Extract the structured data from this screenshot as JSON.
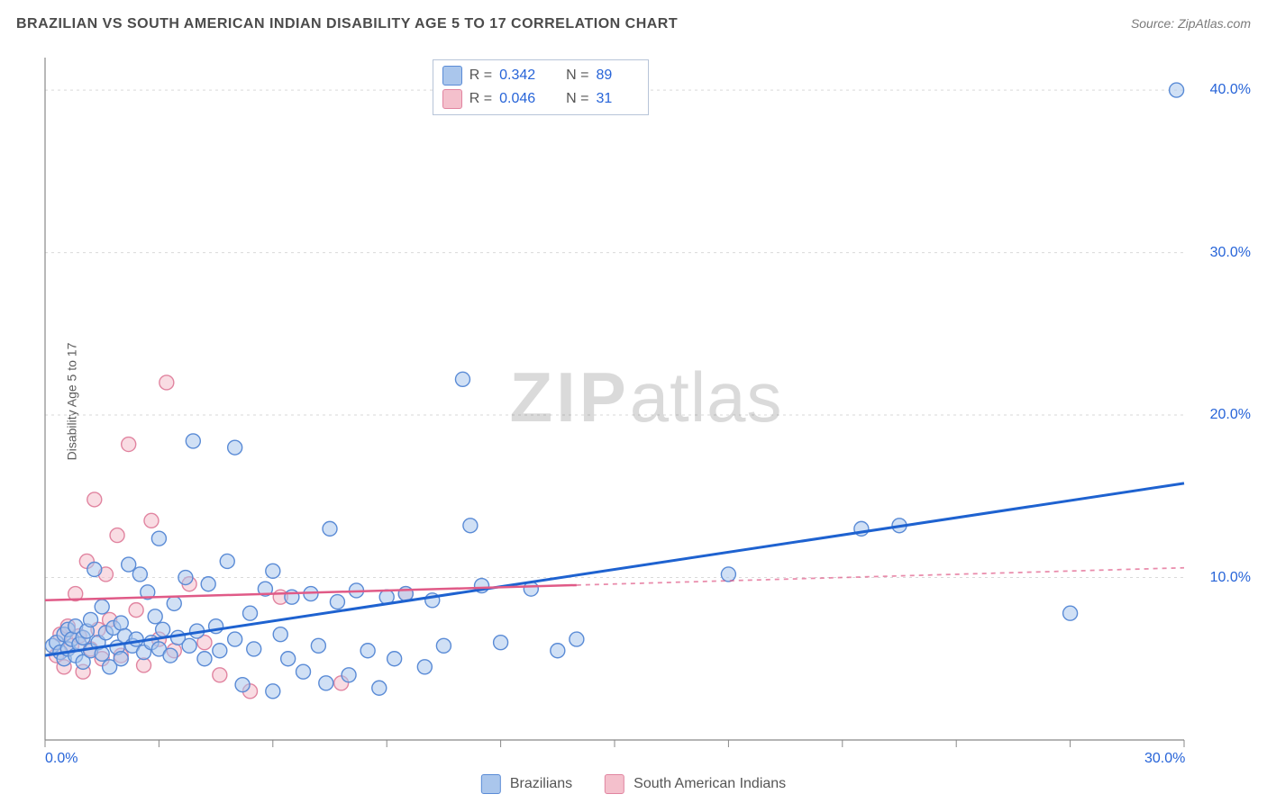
{
  "header": {
    "title": "BRAZILIAN VS SOUTH AMERICAN INDIAN DISABILITY AGE 5 TO 17 CORRELATION CHART",
    "source": "Source: ZipAtlas.com"
  },
  "ylabel": "Disability Age 5 to 17",
  "watermark": {
    "bold": "ZIP",
    "light": "atlas"
  },
  "chart": {
    "type": "scatter-with-regression",
    "xlim": [
      0,
      30
    ],
    "ylim": [
      0,
      42
    ],
    "xticks": [
      0,
      3,
      6,
      9,
      12,
      15,
      18,
      21,
      24,
      27,
      30
    ],
    "xtick_labels": {
      "0": "0.0%",
      "30": "30.0%"
    },
    "yticks": [
      10,
      20,
      30,
      40
    ],
    "ytick_labels": {
      "10": "10.0%",
      "20": "20.0%",
      "30": "30.0%",
      "40": "40.0%"
    },
    "grid_color": "#d9d9d9",
    "axis_color": "#888888",
    "tick_color": "#888888",
    "marker_radius": 8,
    "marker_stroke_width": 1.4,
    "background": "#ffffff",
    "series": [
      {
        "key": "brazilians",
        "label": "Brazilians",
        "fill": "#aac6ec",
        "stroke": "#5a8bd6",
        "fill_opacity": 0.55,
        "line_color": "#1e62d0",
        "line_width": 3,
        "R": "0.342",
        "N": "89",
        "regression": {
          "x1": 0,
          "y1": 5.2,
          "x2": 30,
          "y2": 15.8,
          "solid_until_x": 30
        },
        "points": [
          [
            0.2,
            5.8
          ],
          [
            0.3,
            6.0
          ],
          [
            0.4,
            5.4
          ],
          [
            0.5,
            6.5
          ],
          [
            0.5,
            5.0
          ],
          [
            0.6,
            6.8
          ],
          [
            0.6,
            5.6
          ],
          [
            0.7,
            6.2
          ],
          [
            0.8,
            5.2
          ],
          [
            0.8,
            7.0
          ],
          [
            0.9,
            5.9
          ],
          [
            1.0,
            6.3
          ],
          [
            1.0,
            4.8
          ],
          [
            1.1,
            6.7
          ],
          [
            1.2,
            5.5
          ],
          [
            1.2,
            7.4
          ],
          [
            1.3,
            10.5
          ],
          [
            1.4,
            6.0
          ],
          [
            1.5,
            5.3
          ],
          [
            1.5,
            8.2
          ],
          [
            1.6,
            6.6
          ],
          [
            1.7,
            4.5
          ],
          [
            1.8,
            6.9
          ],
          [
            1.9,
            5.7
          ],
          [
            2.0,
            7.2
          ],
          [
            2.0,
            5.0
          ],
          [
            2.1,
            6.4
          ],
          [
            2.2,
            10.8
          ],
          [
            2.3,
            5.8
          ],
          [
            2.4,
            6.2
          ],
          [
            2.5,
            10.2
          ],
          [
            2.6,
            5.4
          ],
          [
            2.7,
            9.1
          ],
          [
            2.8,
            6.0
          ],
          [
            2.9,
            7.6
          ],
          [
            3.0,
            5.6
          ],
          [
            3.0,
            12.4
          ],
          [
            3.1,
            6.8
          ],
          [
            3.3,
            5.2
          ],
          [
            3.4,
            8.4
          ],
          [
            3.5,
            6.3
          ],
          [
            3.7,
            10.0
          ],
          [
            3.8,
            5.8
          ],
          [
            3.9,
            18.4
          ],
          [
            4.0,
            6.7
          ],
          [
            4.2,
            5.0
          ],
          [
            4.3,
            9.6
          ],
          [
            4.5,
            7.0
          ],
          [
            4.6,
            5.5
          ],
          [
            4.8,
            11.0
          ],
          [
            5.0,
            18.0
          ],
          [
            5.0,
            6.2
          ],
          [
            5.2,
            3.4
          ],
          [
            5.4,
            7.8
          ],
          [
            5.5,
            5.6
          ],
          [
            5.8,
            9.3
          ],
          [
            6.0,
            3.0
          ],
          [
            6.0,
            10.4
          ],
          [
            6.2,
            6.5
          ],
          [
            6.4,
            5.0
          ],
          [
            6.5,
            8.8
          ],
          [
            6.8,
            4.2
          ],
          [
            7.0,
            9.0
          ],
          [
            7.2,
            5.8
          ],
          [
            7.4,
            3.5
          ],
          [
            7.5,
            13.0
          ],
          [
            7.7,
            8.5
          ],
          [
            8.0,
            4.0
          ],
          [
            8.2,
            9.2
          ],
          [
            8.5,
            5.5
          ],
          [
            8.8,
            3.2
          ],
          [
            9.0,
            8.8
          ],
          [
            9.2,
            5.0
          ],
          [
            9.5,
            9.0
          ],
          [
            10.0,
            4.5
          ],
          [
            10.2,
            8.6
          ],
          [
            10.5,
            5.8
          ],
          [
            11.0,
            22.2
          ],
          [
            11.2,
            13.2
          ],
          [
            11.5,
            9.5
          ],
          [
            12.0,
            6.0
          ],
          [
            12.8,
            9.3
          ],
          [
            13.5,
            5.5
          ],
          [
            14.0,
            6.2
          ],
          [
            18.0,
            10.2
          ],
          [
            21.5,
            13.0
          ],
          [
            22.5,
            13.2
          ],
          [
            27.0,
            7.8
          ],
          [
            29.8,
            40.0
          ]
        ]
      },
      {
        "key": "sai",
        "label": "South American Indians",
        "fill": "#f4c0cc",
        "stroke": "#e184a0",
        "fill_opacity": 0.55,
        "line_color": "#e05a87",
        "line_width": 2.5,
        "R": "0.046",
        "N": "31",
        "regression": {
          "x1": 0,
          "y1": 8.6,
          "x2": 30,
          "y2": 10.6,
          "solid_until_x": 14
        },
        "points": [
          [
            0.3,
            5.2
          ],
          [
            0.4,
            6.5
          ],
          [
            0.5,
            4.5
          ],
          [
            0.6,
            7.0
          ],
          [
            0.7,
            5.8
          ],
          [
            0.8,
            9.0
          ],
          [
            0.9,
            6.4
          ],
          [
            1.0,
            4.2
          ],
          [
            1.1,
            11.0
          ],
          [
            1.2,
            5.6
          ],
          [
            1.3,
            14.8
          ],
          [
            1.4,
            6.8
          ],
          [
            1.5,
            5.0
          ],
          [
            1.6,
            10.2
          ],
          [
            1.7,
            7.4
          ],
          [
            1.9,
            12.6
          ],
          [
            2.0,
            5.2
          ],
          [
            2.2,
            18.2
          ],
          [
            2.4,
            8.0
          ],
          [
            2.6,
            4.6
          ],
          [
            2.8,
            13.5
          ],
          [
            3.0,
            6.2
          ],
          [
            3.2,
            22.0
          ],
          [
            3.4,
            5.5
          ],
          [
            3.8,
            9.6
          ],
          [
            4.2,
            6.0
          ],
          [
            4.6,
            4.0
          ],
          [
            5.4,
            3.0
          ],
          [
            6.2,
            8.8
          ],
          [
            7.8,
            3.5
          ],
          [
            9.5,
            9.0
          ]
        ]
      }
    ]
  },
  "legend_top": {
    "left_pct": 34,
    "rows": [
      {
        "swatch_fill": "#aac6ec",
        "swatch_stroke": "#5a8bd6",
        "r_label": "R  =",
        "r_val": "0.342",
        "n_label": "N  =",
        "n_val": "89"
      },
      {
        "swatch_fill": "#f4c0cc",
        "swatch_stroke": "#e184a0",
        "r_label": "R  =",
        "r_val": "0.046",
        "n_label": "N  =",
        "n_val": "31"
      }
    ]
  },
  "legend_bottom": [
    {
      "swatch_fill": "#aac6ec",
      "swatch_stroke": "#5a8bd6",
      "label": "Brazilians"
    },
    {
      "swatch_fill": "#f4c0cc",
      "swatch_stroke": "#e184a0",
      "label": "South American Indians"
    }
  ]
}
